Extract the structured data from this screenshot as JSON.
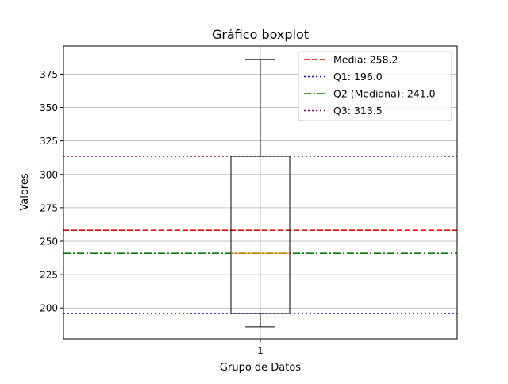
{
  "chart_data": {
    "type": "boxplot",
    "title": "Gráfico boxplot",
    "xlabel": "Grupo de Datos",
    "ylabel": "Valores",
    "categories": [
      "1"
    ],
    "ylim": [
      177,
      396
    ],
    "yticks": [
      200,
      225,
      250,
      275,
      300,
      325,
      350,
      375
    ],
    "grid": true,
    "legend_position": "top-right",
    "box": {
      "whisker_low": 186,
      "q1": 196,
      "median": 241,
      "q3": 313.5,
      "whisker_high": 386
    },
    "reference_lines": [
      {
        "label": "Media: 258.2",
        "value": 258.2,
        "color": "#ff0000",
        "style": "dashed"
      },
      {
        "label": "Q1: 196.0",
        "value": 196.0,
        "color": "#0000ff",
        "style": "dotted"
      },
      {
        "label": "Q2 (Mediana): 241.0",
        "value": 241.0,
        "color": "#008000",
        "style": "dashdot"
      },
      {
        "label": "Q3: 313.5",
        "value": 313.5,
        "color": "#800080",
        "style": "dotted"
      }
    ],
    "colors": {
      "box": "#000000",
      "median": "#ff7f0e",
      "grid": "#b0b0b0"
    }
  }
}
